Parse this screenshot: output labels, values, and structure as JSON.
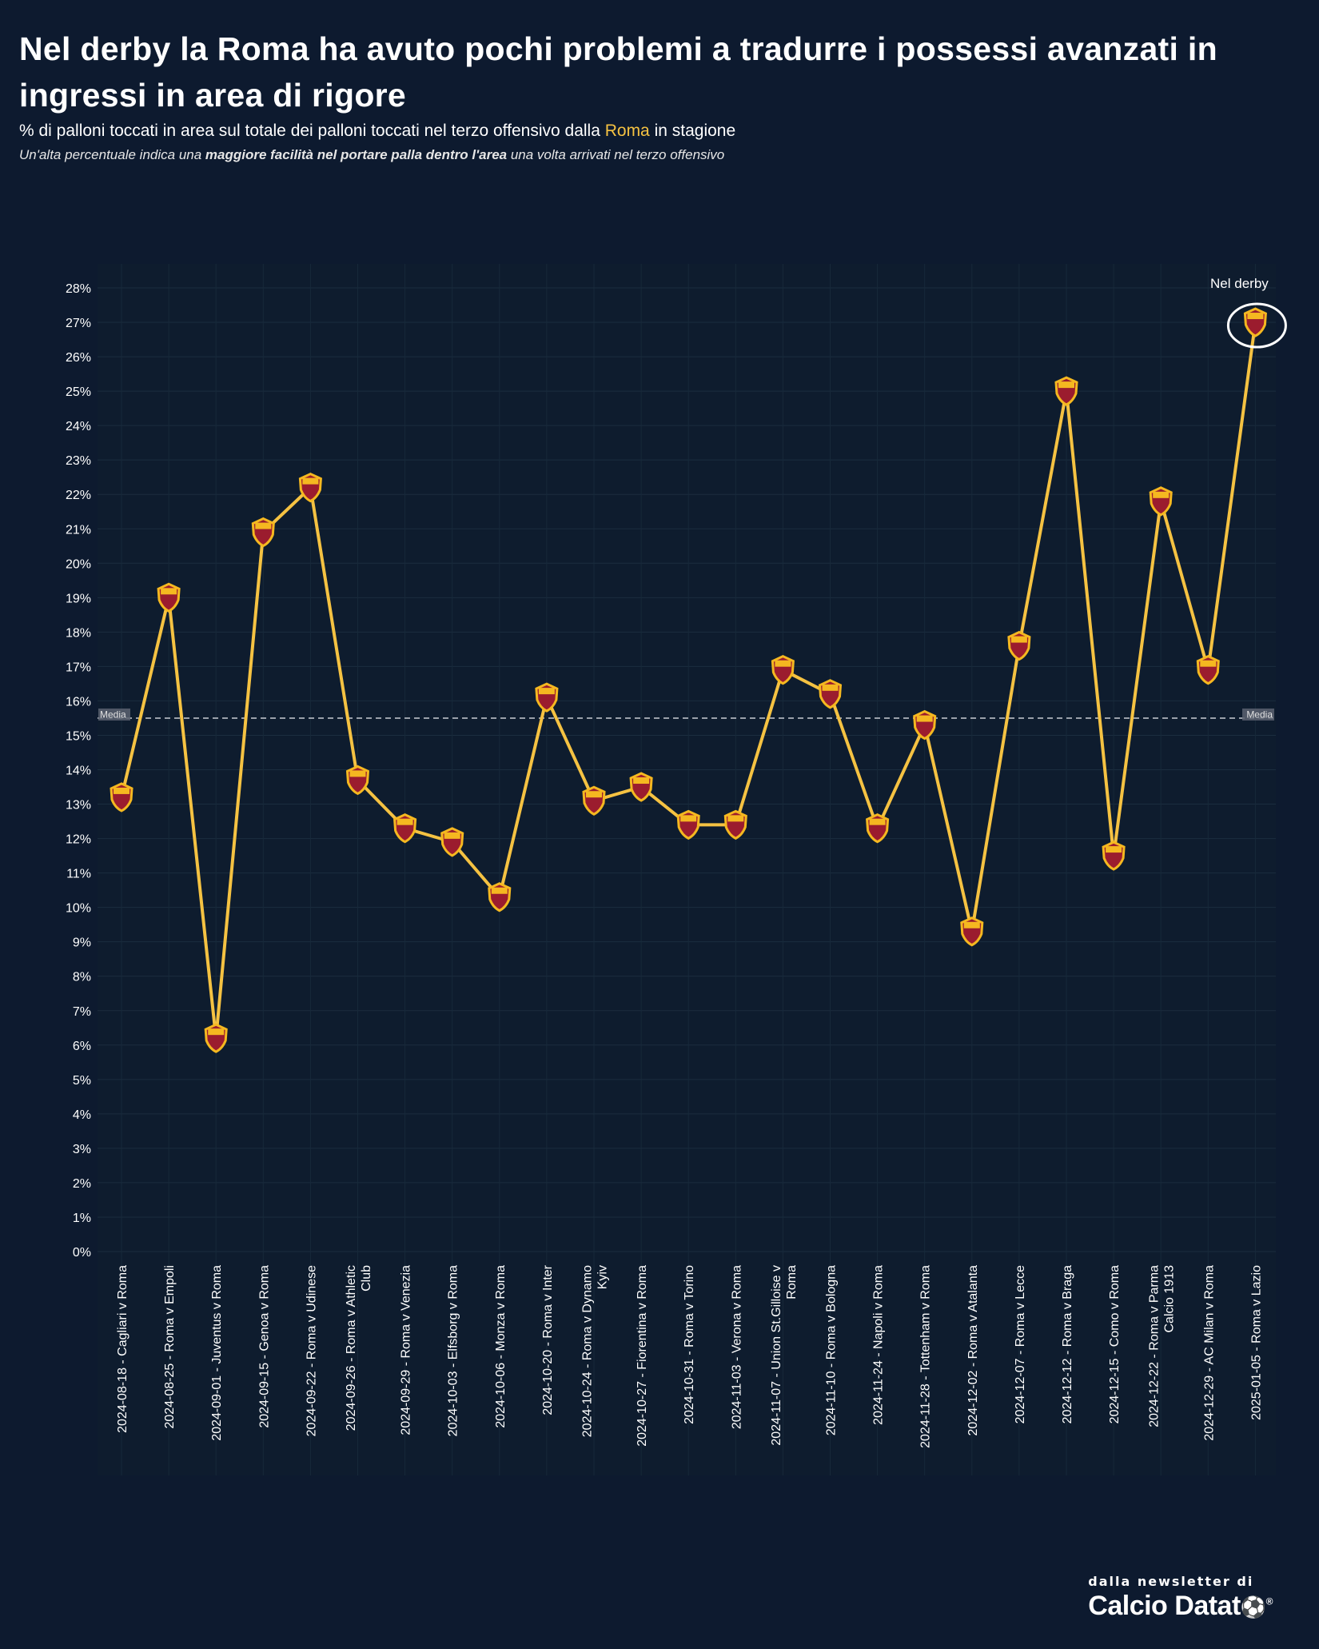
{
  "header": {
    "title": "Nel derby la Roma ha avuto pochi problemi a tradurre i possessi avanzati in ingressi in area di rigore",
    "subtitle_pre": "% di palloni toccati in area sul totale dei palloni toccati nel terzo offensivo dalla ",
    "subtitle_team": "Roma",
    "subtitle_post": " in stagione",
    "note_pre": "Un'alta percentuale indica una ",
    "note_bold": "maggiore facilità nel portare palla dentro l'area",
    "note_post": "  una volta arrivati nel terzo offensivo"
  },
  "brand": {
    "small": "dalla newsletter di",
    "big": "Calcio Datat"
  },
  "colors": {
    "background": "#0d1a2f",
    "line": "#f5c242",
    "average_line": "#c8ccd4",
    "marker_red": "#9b1c2e",
    "marker_gold": "#f5b820"
  },
  "chart_data": {
    "type": "line",
    "categories": [
      "2024-08-18 - Cagliari v Roma",
      "2024-08-25 - Roma v Empoli",
      "2024-09-01 - Juventus v Roma",
      "2024-09-15 - Genoa v Roma",
      "2024-09-22 - Roma v Udinese",
      "2024-09-26 - Roma v Athletic Club",
      "2024-09-29 - Roma v Venezia",
      "2024-10-03 - Elfsborg v Roma",
      "2024-10-06 - Monza v Roma",
      "2024-10-20 - Roma v Inter",
      "2024-10-24 - Roma v Dynamo Kyiv",
      "2024-10-27 - Fiorentina v Roma",
      "2024-10-31 - Roma v Torino",
      "2024-11-03 - Verona v Roma",
      "2024-11-07 - Union St.Gilloise v Roma",
      "2024-11-10 - Roma v Bologna",
      "2024-11-24 - Napoli v Roma",
      "2024-11-28 - Tottenham v Roma",
      "2024-12-02 - Roma v Atalanta",
      "2024-12-07 - Roma v Lecce",
      "2024-12-12 - Roma v Braga",
      "2024-12-15 - Como v Roma",
      "2024-12-22 - Roma v Parma Calcio 1913",
      "2024-12-29 - AC Milan v Roma",
      "2025-01-05 - Roma v Lazio"
    ],
    "x_label_lines": [
      [
        "2024-08-18 - Cagliari v Roma"
      ],
      [
        "2024-08-25 - Roma v Empoli"
      ],
      [
        "2024-09-01 - Juventus v Roma"
      ],
      [
        "2024-09-15 - Genoa v Roma"
      ],
      [
        "2024-09-22 - Roma v Udinese"
      ],
      [
        "2024-09-26 - Roma v Athletic",
        "Club"
      ],
      [
        "2024-09-29 - Roma v Venezia"
      ],
      [
        "2024-10-03 - Elfsborg v Roma"
      ],
      [
        "2024-10-06 - Monza v Roma"
      ],
      [
        "2024-10-20 - Roma v Inter"
      ],
      [
        "2024-10-24 - Roma v Dynamo",
        "Kyiv"
      ],
      [
        "2024-10-27 - Fiorentina v Roma"
      ],
      [
        "2024-10-31 - Roma v Torino"
      ],
      [
        "2024-11-03 - Verona v Roma"
      ],
      [
        "2024-11-07 - Union St.Gilloise v",
        "Roma"
      ],
      [
        "2024-11-10 - Roma v Bologna"
      ],
      [
        "2024-11-24 - Napoli v Roma"
      ],
      [
        "2024-11-28 - Tottenham v Roma"
      ],
      [
        "2024-12-02 - Roma v Atalanta"
      ],
      [
        "2024-12-07 - Roma v Lecce"
      ],
      [
        "2024-12-12 - Roma v Braga"
      ],
      [
        "2024-12-15 - Como v Roma"
      ],
      [
        "2024-12-22 - Roma v Parma",
        "Calcio 1913"
      ],
      [
        "2024-12-29 - AC Milan v Roma"
      ],
      [
        "2025-01-05 - Roma v Lazio"
      ]
    ],
    "series": [
      {
        "values": [
          13.2,
          19.0,
          6.2,
          20.9,
          22.2,
          13.7,
          12.3,
          11.9,
          10.3,
          16.1,
          13.1,
          13.5,
          12.4,
          12.4,
          16.9,
          16.2,
          12.3,
          15.3,
          9.3,
          17.6,
          25.0,
          11.5,
          21.8,
          16.9,
          27.0
        ]
      }
    ],
    "y_ticks": [
      "0%",
      "1%",
      "2%",
      "3%",
      "4%",
      "5%",
      "6%",
      "7%",
      "8%",
      "9%",
      "10%",
      "11%",
      "12%",
      "13%",
      "14%",
      "15%",
      "16%",
      "17%",
      "18%",
      "19%",
      "20%",
      "21%",
      "22%",
      "23%",
      "24%",
      "25%",
      "26%",
      "27%",
      "28%"
    ],
    "ylim": [
      0,
      28
    ],
    "average": 15.5,
    "average_label": "Media",
    "annotation": {
      "text": "Nel derby",
      "index": 24
    },
    "grid": true
  }
}
